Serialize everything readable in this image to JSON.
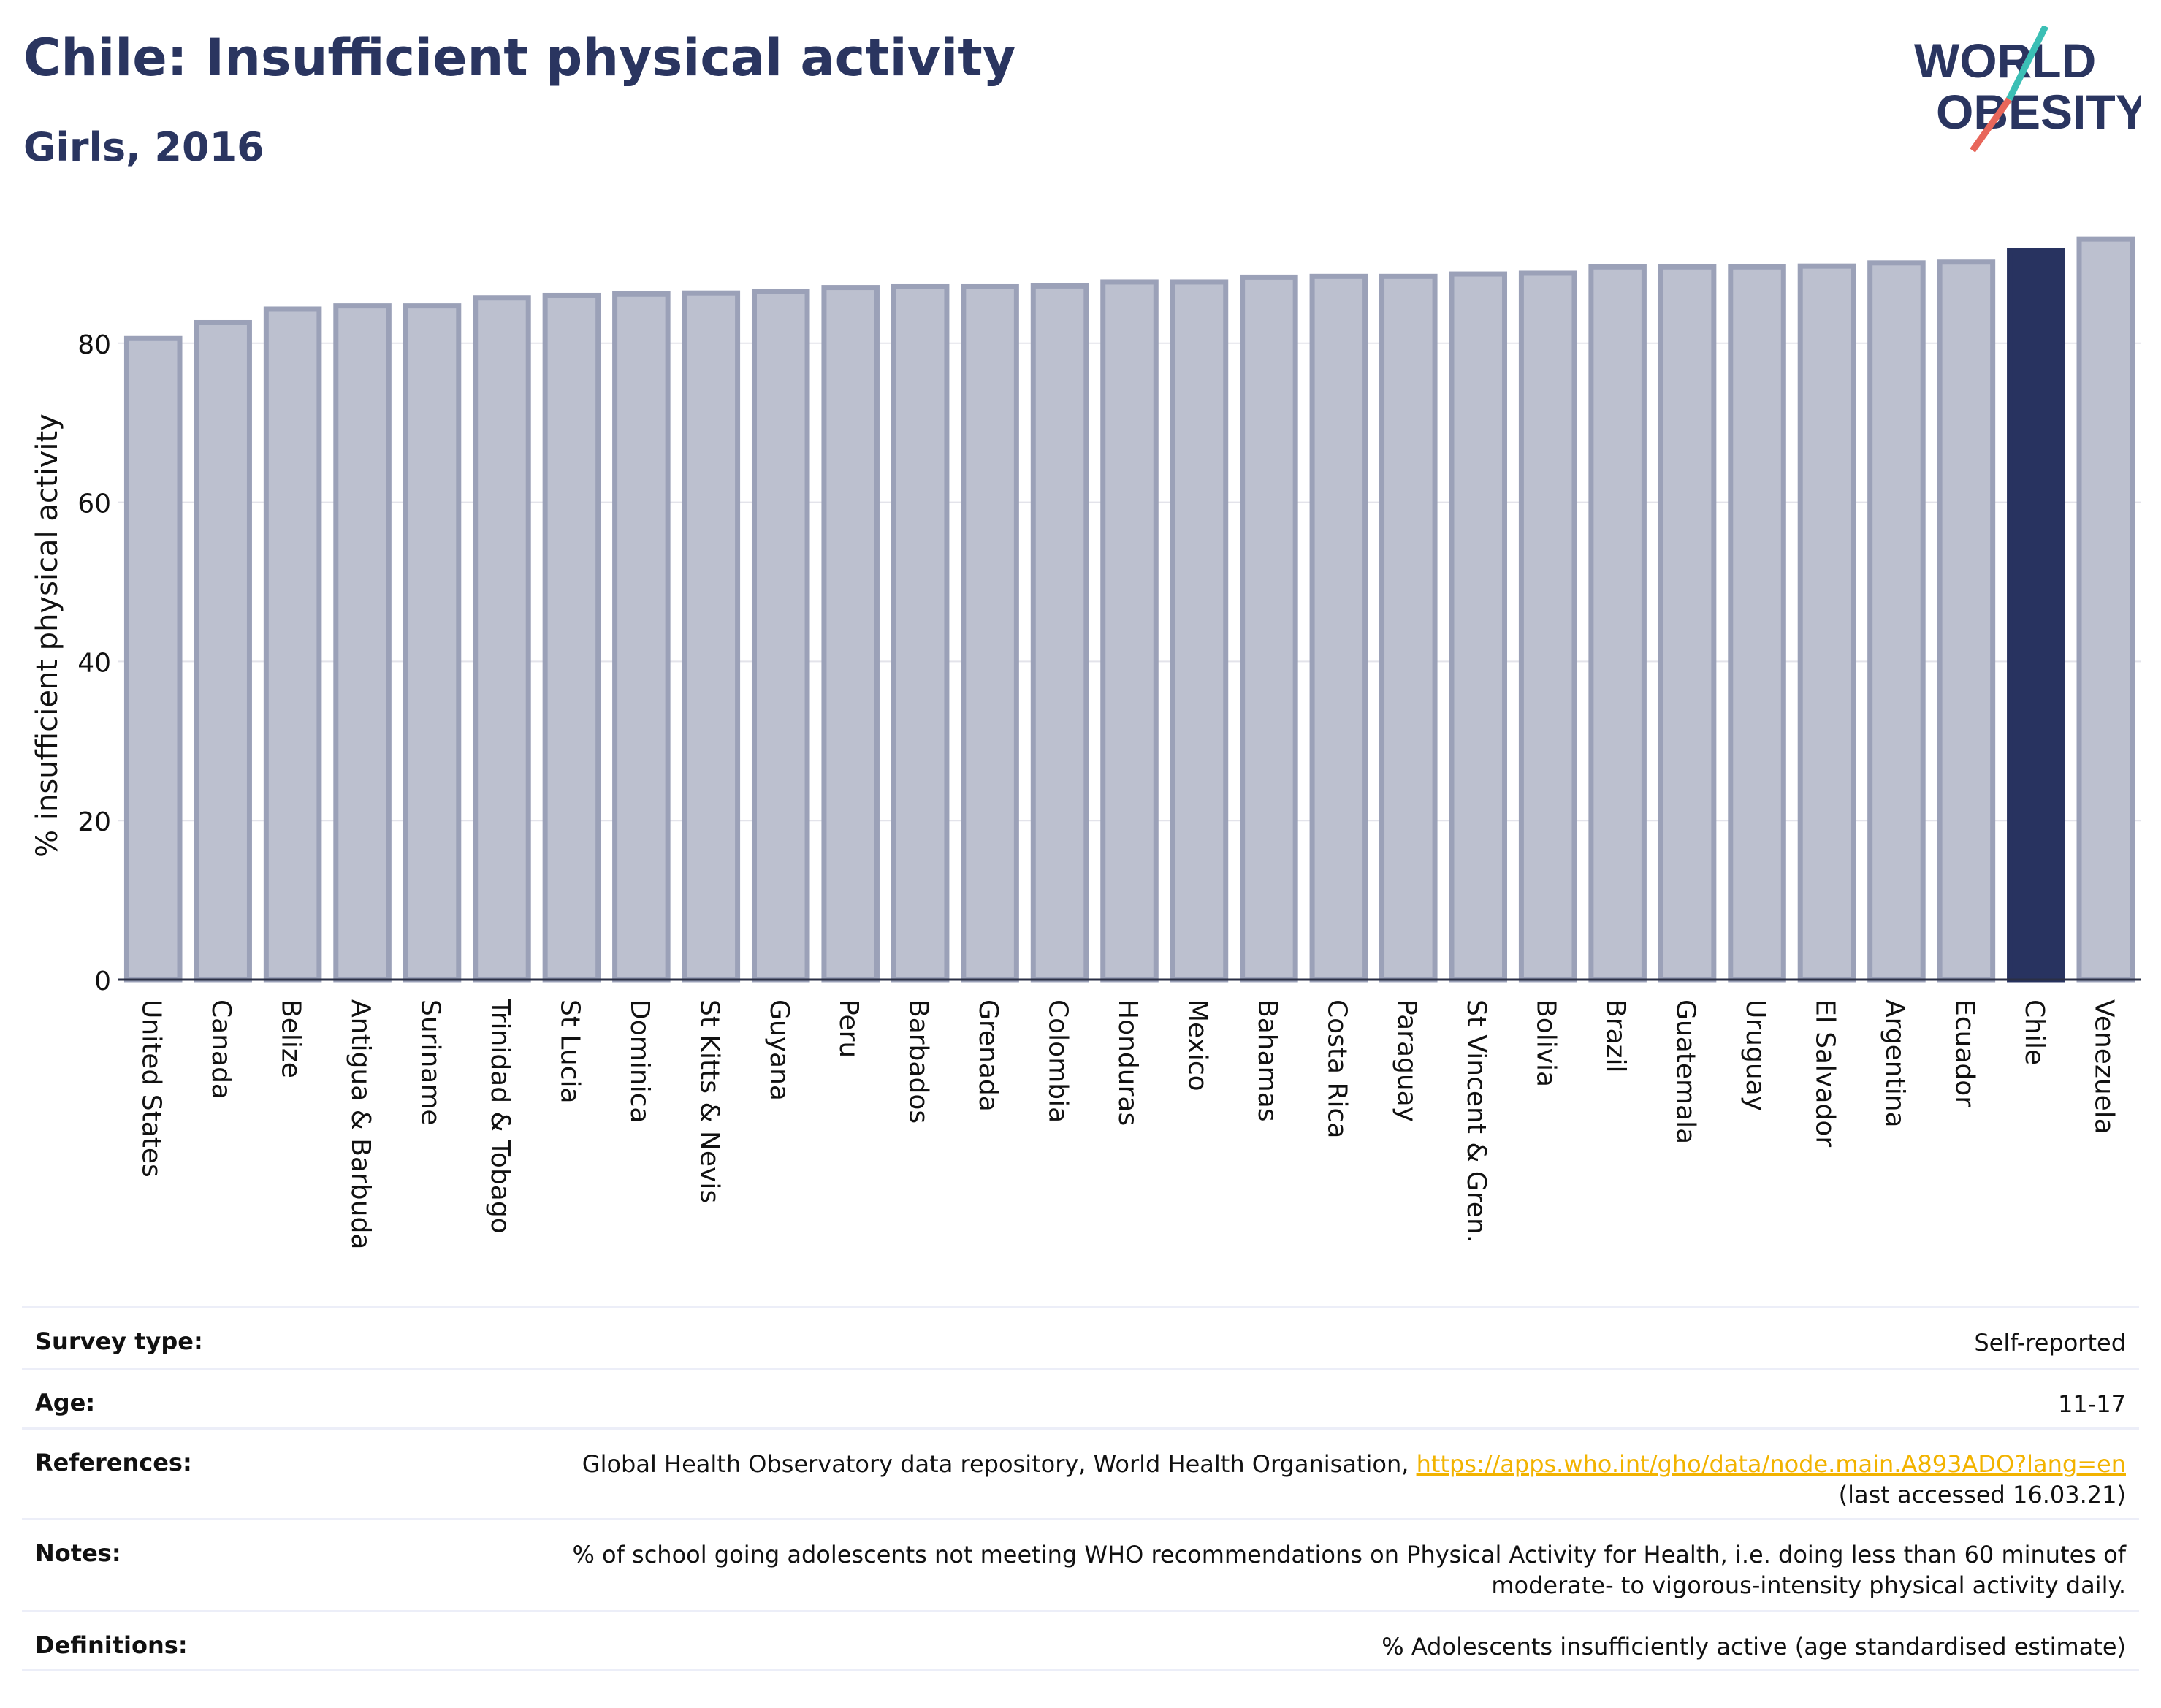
{
  "header": {
    "title": "Chile: Insufficient physical activity",
    "subtitle": "Girls, 2016"
  },
  "logo": {
    "line1": "WORLD",
    "line2": "OBESITY",
    "slash_colors": [
      "#3bbfb5",
      "#e8665a"
    ]
  },
  "colors": {
    "bar": "#bcc0cf",
    "bar_border": "#9ba1b8",
    "highlight": "#283360",
    "title": "#2a3560",
    "grid": "#e3e3ea"
  },
  "chart_data": {
    "type": "bar",
    "ylabel": "% insufficient physical activity",
    "xlabel": "",
    "ylim": [
      0,
      94
    ],
    "yticks": [
      0,
      20,
      40,
      60,
      80
    ],
    "highlight": "Chile",
    "categories": [
      "United States",
      "Canada",
      "Belize",
      "Antigua & Barbuda",
      "Suriname",
      "Trinidad & Tobago",
      "St Lucia",
      "Dominica",
      "St Kitts & Nevis",
      "Guyana",
      "Peru",
      "Barbados",
      "Grenada",
      "Colombia",
      "Honduras",
      "Mexico",
      "Bahamas",
      "Costa Rica",
      "Paraguay",
      "St Vincent & Gren.",
      "Bolivia",
      "Brazil",
      "Guatemala",
      "Uruguay",
      "El Salvador",
      "Argentina",
      "Ecuador",
      "Chile",
      "Venezuela"
    ],
    "values": [
      80.6,
      82.6,
      84.3,
      84.7,
      84.7,
      85.7,
      86.0,
      86.2,
      86.3,
      86.5,
      87.0,
      87.1,
      87.1,
      87.2,
      87.7,
      87.7,
      88.3,
      88.4,
      88.4,
      88.7,
      88.8,
      89.6,
      89.6,
      89.6,
      89.7,
      90.1,
      90.2,
      91.6,
      93.1
    ],
    "grid": true
  },
  "meta": {
    "survey_type": {
      "label": "Survey type:",
      "value": "Self-reported"
    },
    "age": {
      "label": "Age:",
      "value": "11-17"
    },
    "references": {
      "label": "References:",
      "text": "Global Health Observatory data repository, World Health Organisation, ",
      "link": "https://apps.who.int/gho/data/node.main.A893ADO?lang=en",
      "accessed": "(last accessed 16.03.21)"
    },
    "notes": {
      "label": "Notes:",
      "line1": "% of school going adolescents not meeting WHO recommendations on Physical Activity for Health, i.e. doing less than 60 minutes of",
      "line2": "moderate- to vigorous-intensity physical activity daily."
    },
    "definitions": {
      "label": "Definitions:",
      "value": "% Adolescents insufficiently active (age standardised estimate)"
    }
  }
}
